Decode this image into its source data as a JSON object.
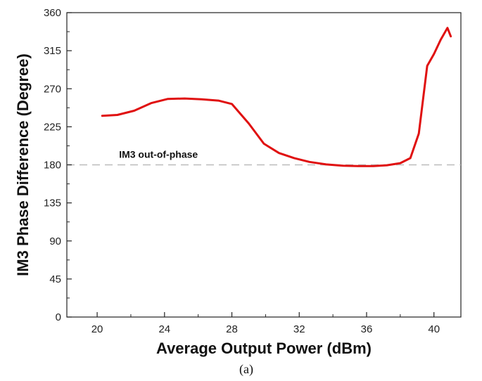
{
  "chart_data": {
    "type": "line",
    "xlabel": "Average Output Power (dBm)",
    "ylabel": "IM3 Phase Difference (Degree)",
    "xlim": [
      18.2,
      41.6
    ],
    "ylim": [
      0,
      360
    ],
    "xticks": [
      20,
      24,
      28,
      32,
      36,
      40
    ],
    "yticks": [
      0,
      45,
      90,
      135,
      180,
      225,
      270,
      315,
      360
    ],
    "grid": false,
    "series_color": "#e01010",
    "reference_line": {
      "y": 180,
      "label": "IM3 out-of-phase",
      "color": "#bbbbbb"
    },
    "series": [
      {
        "x": [
          20.3,
          21.2,
          22.2,
          23.2,
          24.2,
          25.2,
          26.2,
          27.2,
          28.0,
          29.0,
          29.9,
          30.8,
          31.7,
          32.6,
          33.6,
          34.6,
          35.6,
          36.4,
          37.2,
          38.0,
          38.6,
          39.1,
          39.6,
          40.0,
          40.4,
          40.8,
          41.0
        ],
        "y": [
          238,
          239,
          244,
          253,
          258,
          258.5,
          257.5,
          256,
          252,
          229,
          205,
          194,
          188,
          183.5,
          180.5,
          179,
          178.5,
          178.5,
          179.5,
          182,
          188,
          217,
          297,
          311,
          328,
          342,
          332
        ]
      }
    ],
    "caption": "(a)"
  }
}
